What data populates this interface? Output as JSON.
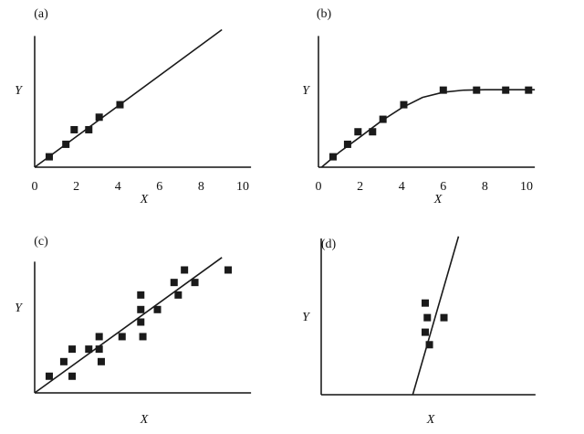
{
  "chart_data": [
    {
      "type": "scatter",
      "title": "(a)",
      "xlabel": "X",
      "ylabel": "Y",
      "xlim": [
        0,
        10.4
      ],
      "ylim": [
        0,
        6.3
      ],
      "xticks": [
        0,
        2,
        4,
        6,
        8,
        10
      ],
      "color": "#1a1a1a",
      "points": {
        "x": [
          0.7,
          1.5,
          1.9,
          2.6,
          3.1,
          4.1
        ],
        "y": [
          0.5,
          1.1,
          1.8,
          1.8,
          2.4,
          3.0
        ]
      },
      "fit_line": {
        "x": [
          0,
          9.0
        ],
        "y": [
          0,
          6.6
        ]
      }
    },
    {
      "type": "scatter",
      "title": "(b)",
      "xlabel": "X",
      "ylabel": "Y",
      "xlim": [
        0,
        10.4
      ],
      "ylim": [
        0,
        6.3
      ],
      "xticks": [
        0,
        2,
        4,
        6,
        8,
        10
      ],
      "color": "#1a1a1a",
      "points": {
        "x": [
          0.7,
          1.4,
          1.9,
          2.6,
          3.1,
          4.1,
          6.0,
          7.6,
          9.0,
          10.1
        ],
        "y": [
          0.5,
          1.1,
          1.7,
          1.7,
          2.3,
          3.0,
          3.7,
          3.7,
          3.7,
          3.7
        ]
      },
      "fit_line": {
        "x": [
          0.15,
          1,
          2,
          3,
          4,
          5,
          6,
          7,
          8,
          9,
          10.4
        ],
        "y": [
          0,
          0.72,
          1.45,
          2.2,
          2.85,
          3.35,
          3.6,
          3.7,
          3.72,
          3.72,
          3.72
        ]
      }
    },
    {
      "type": "scatter",
      "title": "(c)",
      "xlabel": "X",
      "ylabel": "Y",
      "xlim": [
        0,
        10.4
      ],
      "ylim": [
        0,
        6.3
      ],
      "color": "#1a1a1a",
      "points": {
        "x": [
          0.7,
          1.4,
          1.8,
          1.8,
          2.6,
          3.1,
          3.1,
          3.2,
          4.2,
          5.1,
          5.1,
          5.1,
          5.2,
          5.9,
          6.7,
          6.9,
          7.2,
          7.7,
          9.3
        ],
        "y": [
          0.8,
          1.5,
          0.8,
          2.1,
          2.1,
          2.1,
          2.7,
          1.5,
          2.7,
          4.7,
          4.0,
          3.4,
          2.7,
          4.0,
          5.3,
          4.7,
          5.9,
          5.3,
          5.9
        ]
      },
      "fit_line": {
        "x": [
          0,
          9.0
        ],
        "y": [
          0,
          6.5
        ]
      }
    },
    {
      "type": "scatter",
      "title": "(d)",
      "xlabel": "X",
      "ylabel": "Y",
      "xlim": [
        0,
        10.3
      ],
      "ylim": [
        0,
        7.5
      ],
      "color": "#1a1a1a",
      "points": {
        "x": [
          5.0,
          5.1,
          5.9,
          5.0,
          5.2
        ],
        "y": [
          4.4,
          3.7,
          3.7,
          3.0,
          2.4
        ]
      },
      "fit_line": {
        "x": [
          4.4,
          6.6
        ],
        "y": [
          0,
          7.6
        ]
      }
    }
  ]
}
